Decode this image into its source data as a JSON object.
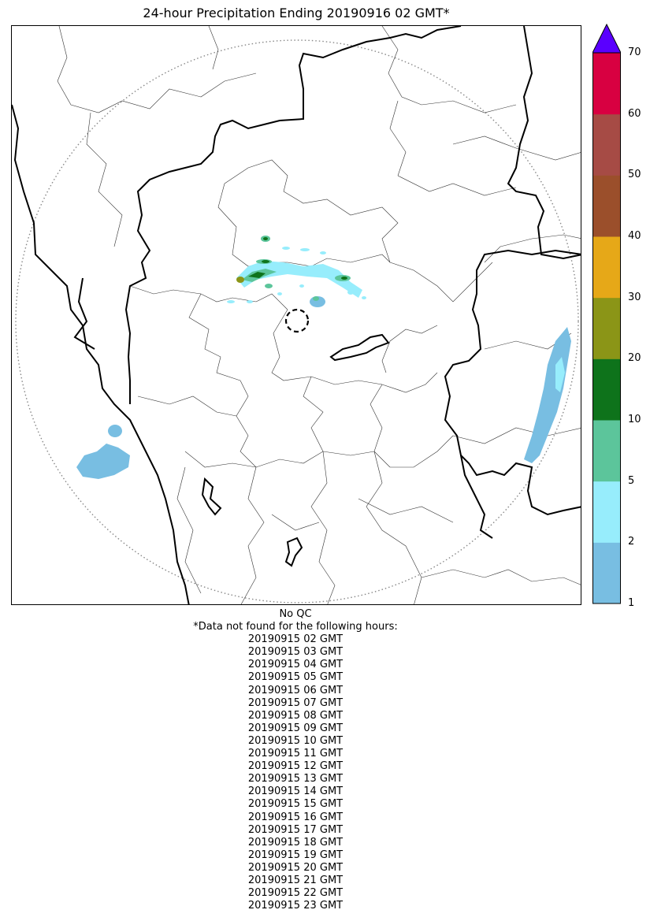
{
  "title": "24-hour Precipitation Ending 20190916 02 GMT*",
  "colorbar": {
    "ticks": [
      "1",
      "2",
      "5",
      "10",
      "20",
      "30",
      "40",
      "50",
      "60",
      "70"
    ],
    "colors": [
      "#78bee2",
      "#97edfc",
      "#5cc59b",
      "#0e731b",
      "#8b9517",
      "#e6a818",
      "#9b4f2b",
      "#a64b45",
      "#d80041"
    ],
    "extend_color": "#5a00ff"
  },
  "footer": {
    "qc_text": "No QC",
    "note": "*Data not found for the following hours:",
    "missing_hours": [
      "20190915 02 GMT",
      "20190915 03 GMT",
      "20190915 04 GMT",
      "20190915 05 GMT",
      "20190915 06 GMT",
      "20190915 07 GMT",
      "20190915 08 GMT",
      "20190915 09 GMT",
      "20190915 10 GMT",
      "20190915 11 GMT",
      "20190915 12 GMT",
      "20190915 13 GMT",
      "20190915 14 GMT",
      "20190915 15 GMT",
      "20190915 16 GMT",
      "20190915 17 GMT",
      "20190915 18 GMT",
      "20190915 19 GMT",
      "20190915 20 GMT",
      "20190915 21 GMT",
      "20190915 22 GMT",
      "20190915 23 GMT"
    ]
  }
}
